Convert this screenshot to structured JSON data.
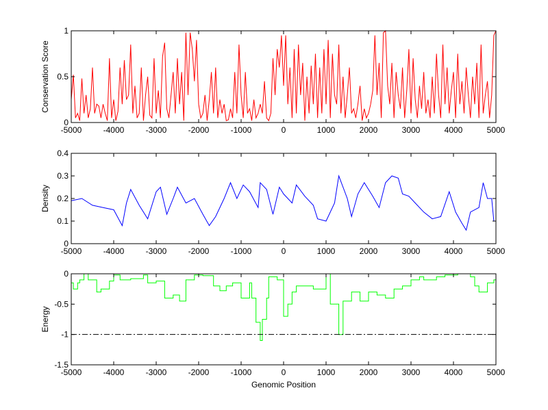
{
  "chart_data": [
    {
      "type": "line",
      "ylabel": "Conservation Score",
      "xlabel": "",
      "xlim": [
        -5000,
        5000
      ],
      "ylim": [
        0,
        1
      ],
      "xticks": [
        -5000,
        -4000,
        -3000,
        -2000,
        -1000,
        0,
        1000,
        2000,
        3000,
        4000,
        5000
      ],
      "yticks": [
        0,
        0.5,
        1
      ],
      "color": "#ff0000",
      "x_start": -5000,
      "x_step": 50,
      "values": [
        0.25,
        0.52,
        0.05,
        0.1,
        0.02,
        0.48,
        0.1,
        0.3,
        0.05,
        0.15,
        0.6,
        0.1,
        0.2,
        0.18,
        0.05,
        0.2,
        0.1,
        0.02,
        0.7,
        0.05,
        0.25,
        0.02,
        0.12,
        0.6,
        0.2,
        0.68,
        0.25,
        0.3,
        0.85,
        0.1,
        0.4,
        0.05,
        0.1,
        0.6,
        0.02,
        0.3,
        0.5,
        0.08,
        0.05,
        0.7,
        0.1,
        0.35,
        0.05,
        0.72,
        0.87,
        0.15,
        0.05,
        0.3,
        0.55,
        0.1,
        0.7,
        0.2,
        0.55,
        0.02,
        0.98,
        0.3,
        0.98,
        0.8,
        0.45,
        0.9,
        0.2,
        0.05,
        0.1,
        0.3,
        0.02,
        0.25,
        0.55,
        0.1,
        0.6,
        0.05,
        0.25,
        0.1,
        0.2,
        0.02,
        0.03,
        0.15,
        0.05,
        0.55,
        0.1,
        0.85,
        0.3,
        0.05,
        0.55,
        0.1,
        0.15,
        0.02,
        0.25,
        0.05,
        0.1,
        0.2,
        0.1,
        0.45,
        0.05,
        0.02,
        0.1,
        0.7,
        0.3,
        0.8,
        0.6,
        0.95,
        0.4,
        0.95,
        0.2,
        0.6,
        0.05,
        0.8,
        0.1,
        0.85,
        0.3,
        0.65,
        0.02,
        0.5,
        0.1,
        0.62,
        0.2,
        0.75,
        0.05,
        0.6,
        0.1,
        0.8,
        0.2,
        0.9,
        0.05,
        0.75,
        0.3,
        0.2,
        0.85,
        0.1,
        0.5,
        0.05,
        0.3,
        0.6,
        0.1,
        0.15,
        0.05,
        0.2,
        0.4,
        0.02,
        0.15,
        0.05,
        0.1,
        0.2,
        0.35,
        0.95,
        0.3,
        0.65,
        0.05,
        0.98,
        1.0,
        0.4,
        0.2,
        0.65,
        0.05,
        0.55,
        0.3,
        0.15,
        0.6,
        0.05,
        0.35,
        0.8,
        0.1,
        0.7,
        0.25,
        0.05,
        0.4,
        0.15,
        0.55,
        0.1,
        0.25,
        0.05,
        0.5,
        0.1,
        0.75,
        0.3,
        0.05,
        0.85,
        0.2,
        0.6,
        0.1,
        0.35,
        0.55,
        0.05,
        0.75,
        0.2,
        0.45,
        0.1,
        0.6,
        0.3,
        0.05,
        0.5,
        0.2,
        0.65,
        0.05,
        0.85,
        0.1,
        0.3,
        0.45,
        0.05,
        0.3,
        0.95,
        1.0
      ]
    },
    {
      "type": "line",
      "ylabel": "Density",
      "xlabel": "",
      "xlim": [
        -5000,
        5000
      ],
      "ylim": [
        0,
        0.4
      ],
      "xticks": [
        -5000,
        -4000,
        -3000,
        -2000,
        -1000,
        0,
        1000,
        2000,
        3000,
        4000,
        5000
      ],
      "yticks": [
        0,
        0.1,
        0.2,
        0.3,
        0.4
      ],
      "color": "#0000ff",
      "x": [
        -5000,
        -4750,
        -4500,
        -4250,
        -4000,
        -3800,
        -3700,
        -3600,
        -3400,
        -3200,
        -3000,
        -2900,
        -2750,
        -2600,
        -2500,
        -2300,
        -2100,
        -1900,
        -1750,
        -1600,
        -1400,
        -1250,
        -1100,
        -950,
        -800,
        -600,
        -550,
        -400,
        -250,
        -100,
        0,
        200,
        300,
        500,
        700,
        800,
        1000,
        1200,
        1300,
        1500,
        1600,
        1750,
        1900,
        2100,
        2250,
        2400,
        2550,
        2700,
        2800,
        2950,
        3100,
        3300,
        3500,
        3700,
        3900,
        4050,
        4200,
        4300,
        4400,
        4600,
        4700,
        4800,
        4900,
        4950,
        5000
      ],
      "y": [
        0.19,
        0.2,
        0.17,
        0.16,
        0.15,
        0.08,
        0.18,
        0.24,
        0.17,
        0.11,
        0.23,
        0.25,
        0.13,
        0.2,
        0.25,
        0.18,
        0.2,
        0.13,
        0.08,
        0.12,
        0.2,
        0.27,
        0.2,
        0.26,
        0.23,
        0.16,
        0.27,
        0.24,
        0.13,
        0.25,
        0.22,
        0.18,
        0.26,
        0.21,
        0.17,
        0.11,
        0.1,
        0.18,
        0.3,
        0.2,
        0.12,
        0.22,
        0.27,
        0.21,
        0.16,
        0.27,
        0.3,
        0.29,
        0.22,
        0.21,
        0.18,
        0.14,
        0.11,
        0.12,
        0.23,
        0.14,
        0.09,
        0.06,
        0.14,
        0.16,
        0.27,
        0.2,
        0.2,
        0.1,
        0.1
      ]
    },
    {
      "type": "line",
      "ylabel": "Energy",
      "xlabel": "Genomic Position",
      "xlim": [
        -5000,
        5000
      ],
      "ylim": [
        -1.5,
        0
      ],
      "xticks": [
        -5000,
        -4000,
        -3000,
        -2000,
        -1000,
        0,
        1000,
        2000,
        3000,
        4000,
        5000
      ],
      "yticks": [
        -1.5,
        -1,
        -0.5,
        0
      ],
      "color": "#00ff00",
      "threshold": -1,
      "step": true,
      "x": [
        -5000,
        -4950,
        -4850,
        -4800,
        -4700,
        -4600,
        -4400,
        -4300,
        -4100,
        -4000,
        -3850,
        -3600,
        -3300,
        -3200,
        -3000,
        -2800,
        -2600,
        -2450,
        -2300,
        -2100,
        -1900,
        -1650,
        -1500,
        -1350,
        -1200,
        -1000,
        -800,
        -750,
        -650,
        -550,
        -500,
        -400,
        -350,
        -150,
        0,
        100,
        200,
        300,
        500,
        700,
        1000,
        1100,
        1300,
        1400,
        1600,
        1800,
        2000,
        2200,
        2400,
        2600,
        2800,
        3000,
        3200,
        3300,
        3600,
        3800,
        4100,
        4400,
        4500,
        4600,
        4800,
        4950
      ],
      "y": [
        -0.15,
        -0.25,
        -0.15,
        -0.1,
        0,
        -0.1,
        -0.3,
        -0.25,
        -0.12,
        -0.02,
        -0.1,
        -0.08,
        -0.02,
        -0.15,
        -0.12,
        -0.4,
        -0.35,
        -0.45,
        -0.1,
        -0.02,
        -0.03,
        -0.2,
        -0.28,
        -0.2,
        -0.15,
        -0.4,
        -0.15,
        -0.4,
        -0.8,
        -1.1,
        -0.75,
        -0.4,
        -0.05,
        -0.1,
        -0.7,
        -0.5,
        -0.3,
        -0.2,
        -0.2,
        -0.25,
        0,
        -0.5,
        -1.0,
        -0.45,
        -0.3,
        -0.45,
        -0.3,
        -0.35,
        -0.4,
        -0.25,
        -0.2,
        -0.1,
        -0.05,
        -0.1,
        -0.05,
        -0.02,
        0,
        -0.05,
        -0.2,
        -0.3,
        -0.15,
        -0.1
      ]
    }
  ]
}
